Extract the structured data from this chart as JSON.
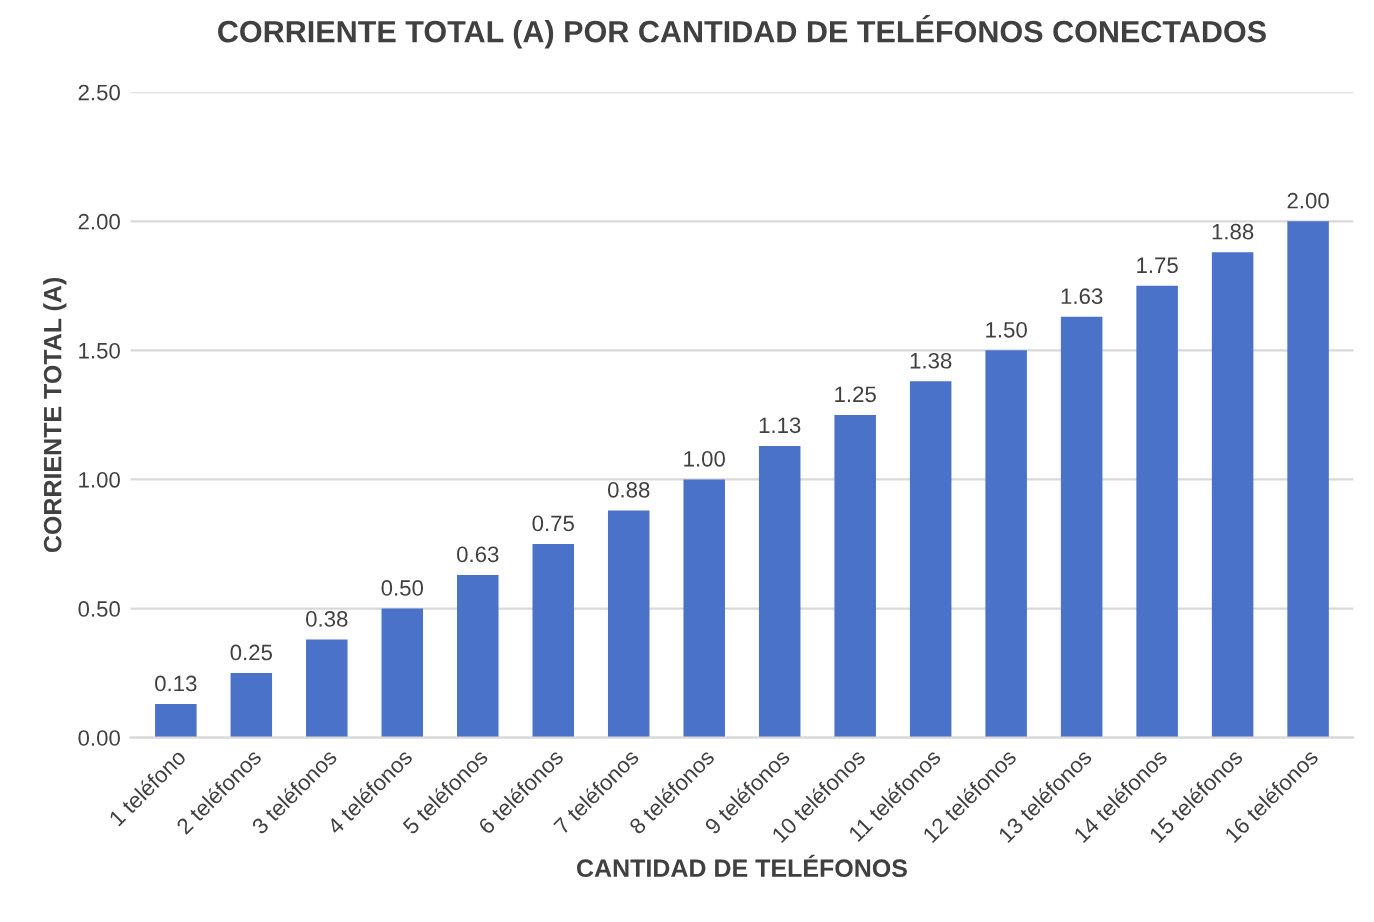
{
  "chart_data": {
    "type": "bar",
    "title": "CORRIENTE TOTAL (A) POR CANTIDAD DE TELÉFONOS CONECTADOS",
    "xlabel": "CANTIDAD DE TELÉFONOS",
    "ylabel": "CORRIENTE TOTAL (A)",
    "categories": [
      "1 teléfono",
      "2 teléfonos",
      "3 teléfonos",
      "4 teléfonos",
      "5 teléfonos",
      "6 teléfonos",
      "7 teléfonos",
      "8 teléfonos",
      "9 teléfonos",
      "10 teléfonos",
      "11 teléfonos",
      "12 teléfonos",
      "13 teléfonos",
      "14 teléfonos",
      "15 teléfonos",
      "16 teléfonos"
    ],
    "values": [
      0.13,
      0.25,
      0.38,
      0.5,
      0.63,
      0.75,
      0.88,
      1.0,
      1.13,
      1.25,
      1.38,
      1.5,
      1.63,
      1.75,
      1.88,
      2.0
    ],
    "value_labels": [
      "0.13",
      "0.25",
      "0.38",
      "0.50",
      "0.63",
      "0.75",
      "0.88",
      "1.00",
      "1.13",
      "1.25",
      "1.38",
      "1.50",
      "1.63",
      "1.75",
      "1.88",
      "2.00"
    ],
    "color": "#4a72c8",
    "ylim": [
      0,
      2.5
    ],
    "yticks": [
      {
        "value": 0,
        "label": "0.00"
      },
      {
        "value": 0.5,
        "label": "0.50"
      },
      {
        "value": 1.0,
        "label": "1.00"
      },
      {
        "value": 1.5,
        "label": "1.50"
      },
      {
        "value": 2.0,
        "label": "2.00"
      },
      {
        "value": 2.5,
        "label": "2.50"
      }
    ],
    "grid": "y"
  }
}
